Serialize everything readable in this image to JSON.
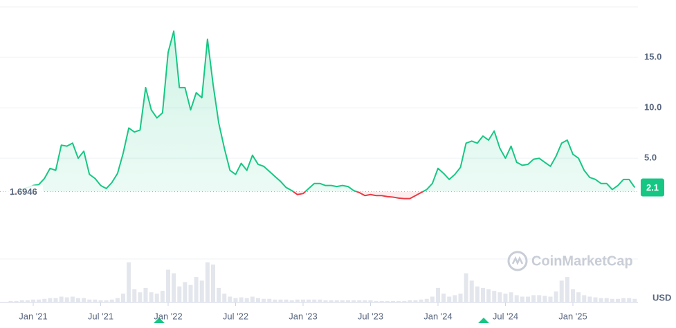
{
  "chart_data": {
    "type": "line",
    "categories": [
      null,
      null,
      null,
      null,
      "Jan '21",
      null,
      null,
      null,
      null,
      null,
      null,
      null,
      null,
      null,
      null,
      null,
      "Jul '21",
      null,
      null,
      null,
      null,
      null,
      null,
      null,
      null,
      null,
      null,
      null,
      "Jan '22",
      null,
      null,
      null,
      null,
      null,
      null,
      null,
      null,
      null,
      null,
      null,
      "Jul '22",
      null,
      null,
      null,
      null,
      null,
      null,
      null,
      null,
      null,
      null,
      null,
      "Jan '23",
      null,
      null,
      null,
      null,
      null,
      null,
      null,
      null,
      null,
      null,
      null,
      "Jul '23",
      null,
      null,
      null,
      null,
      null,
      null,
      null,
      null,
      null,
      null,
      null,
      "Jan '24",
      null,
      null,
      null,
      null,
      null,
      null,
      null,
      null,
      null,
      null,
      null,
      "Jul '24",
      null,
      null,
      null,
      null,
      null,
      null,
      null,
      null,
      null,
      null,
      null,
      "Jan '25",
      null,
      null,
      null,
      null,
      null,
      null,
      null,
      null,
      null,
      null,
      null
    ],
    "values": [
      1.3,
      1.6,
      1.9,
      2.1,
      2.3,
      2.4,
      3.0,
      4.0,
      3.8,
      6.3,
      6.2,
      6.5,
      5.0,
      5.7,
      3.4,
      3.0,
      2.3,
      2.0,
      2.6,
      3.5,
      5.5,
      8.0,
      7.6,
      7.8,
      12.0,
      9.8,
      9.0,
      9.5,
      15.5,
      17.6,
      12.0,
      12.0,
      9.8,
      11.5,
      11.0,
      16.8,
      12.3,
      8.5,
      6.0,
      3.8,
      3.4,
      4.5,
      3.8,
      5.3,
      4.4,
      4.2,
      3.7,
      3.2,
      2.7,
      2.1,
      1.8,
      1.4,
      1.5,
      2.0,
      2.5,
      2.5,
      2.3,
      2.3,
      2.2,
      2.3,
      2.2,
      1.8,
      1.6,
      1.3,
      1.4,
      1.3,
      1.3,
      1.2,
      1.15,
      1.05,
      1.0,
      1.0,
      1.3,
      1.6,
      1.9,
      2.5,
      4.0,
      3.5,
      2.9,
      3.4,
      4.1,
      6.5,
      6.7,
      6.5,
      7.2,
      6.8,
      7.7,
      6.0,
      5.0,
      6.2,
      4.6,
      4.3,
      4.4,
      4.9,
      5.0,
      4.6,
      4.2,
      5.2,
      6.5,
      6.8,
      5.4,
      5.0,
      3.8,
      3.1,
      2.9,
      2.5,
      2.5,
      1.9,
      2.3,
      2.9,
      2.9,
      2.1
    ],
    "volume": [
      2,
      2,
      3,
      3,
      4,
      4,
      5,
      6,
      6,
      8,
      7,
      8,
      6,
      6,
      4,
      4,
      3,
      3,
      4,
      6,
      12,
      55,
      18,
      14,
      20,
      14,
      12,
      16,
      45,
      40,
      22,
      28,
      24,
      35,
      30,
      55,
      52,
      20,
      12,
      8,
      6,
      7,
      6,
      8,
      6,
      5,
      5,
      4,
      4,
      4,
      3,
      4,
      4,
      4,
      4,
      4,
      3,
      3,
      3,
      3,
      3,
      3,
      3,
      3,
      3,
      2,
      2,
      2,
      2,
      2,
      2,
      3,
      3,
      4,
      5,
      8,
      20,
      12,
      8,
      10,
      12,
      40,
      30,
      22,
      20,
      18,
      16,
      14,
      12,
      14,
      10,
      8,
      8,
      10,
      10,
      9,
      8,
      15,
      30,
      35,
      18,
      14,
      10,
      8,
      7,
      6,
      6,
      5,
      5,
      6,
      6,
      5
    ],
    "baseline": 1.6946,
    "current_price": 2.1,
    "color_up": "#16c784",
    "color_down": "#ea3943",
    "ylim": [
      -4.5,
      20
    ],
    "yticks": [
      {
        "value": 5,
        "label": "5.0"
      },
      {
        "value": 10,
        "label": "10.0"
      },
      {
        "value": 15,
        "label": "15.0"
      }
    ],
    "grid": true,
    "watermark": "CoinMarketCap",
    "currency": "USD"
  }
}
